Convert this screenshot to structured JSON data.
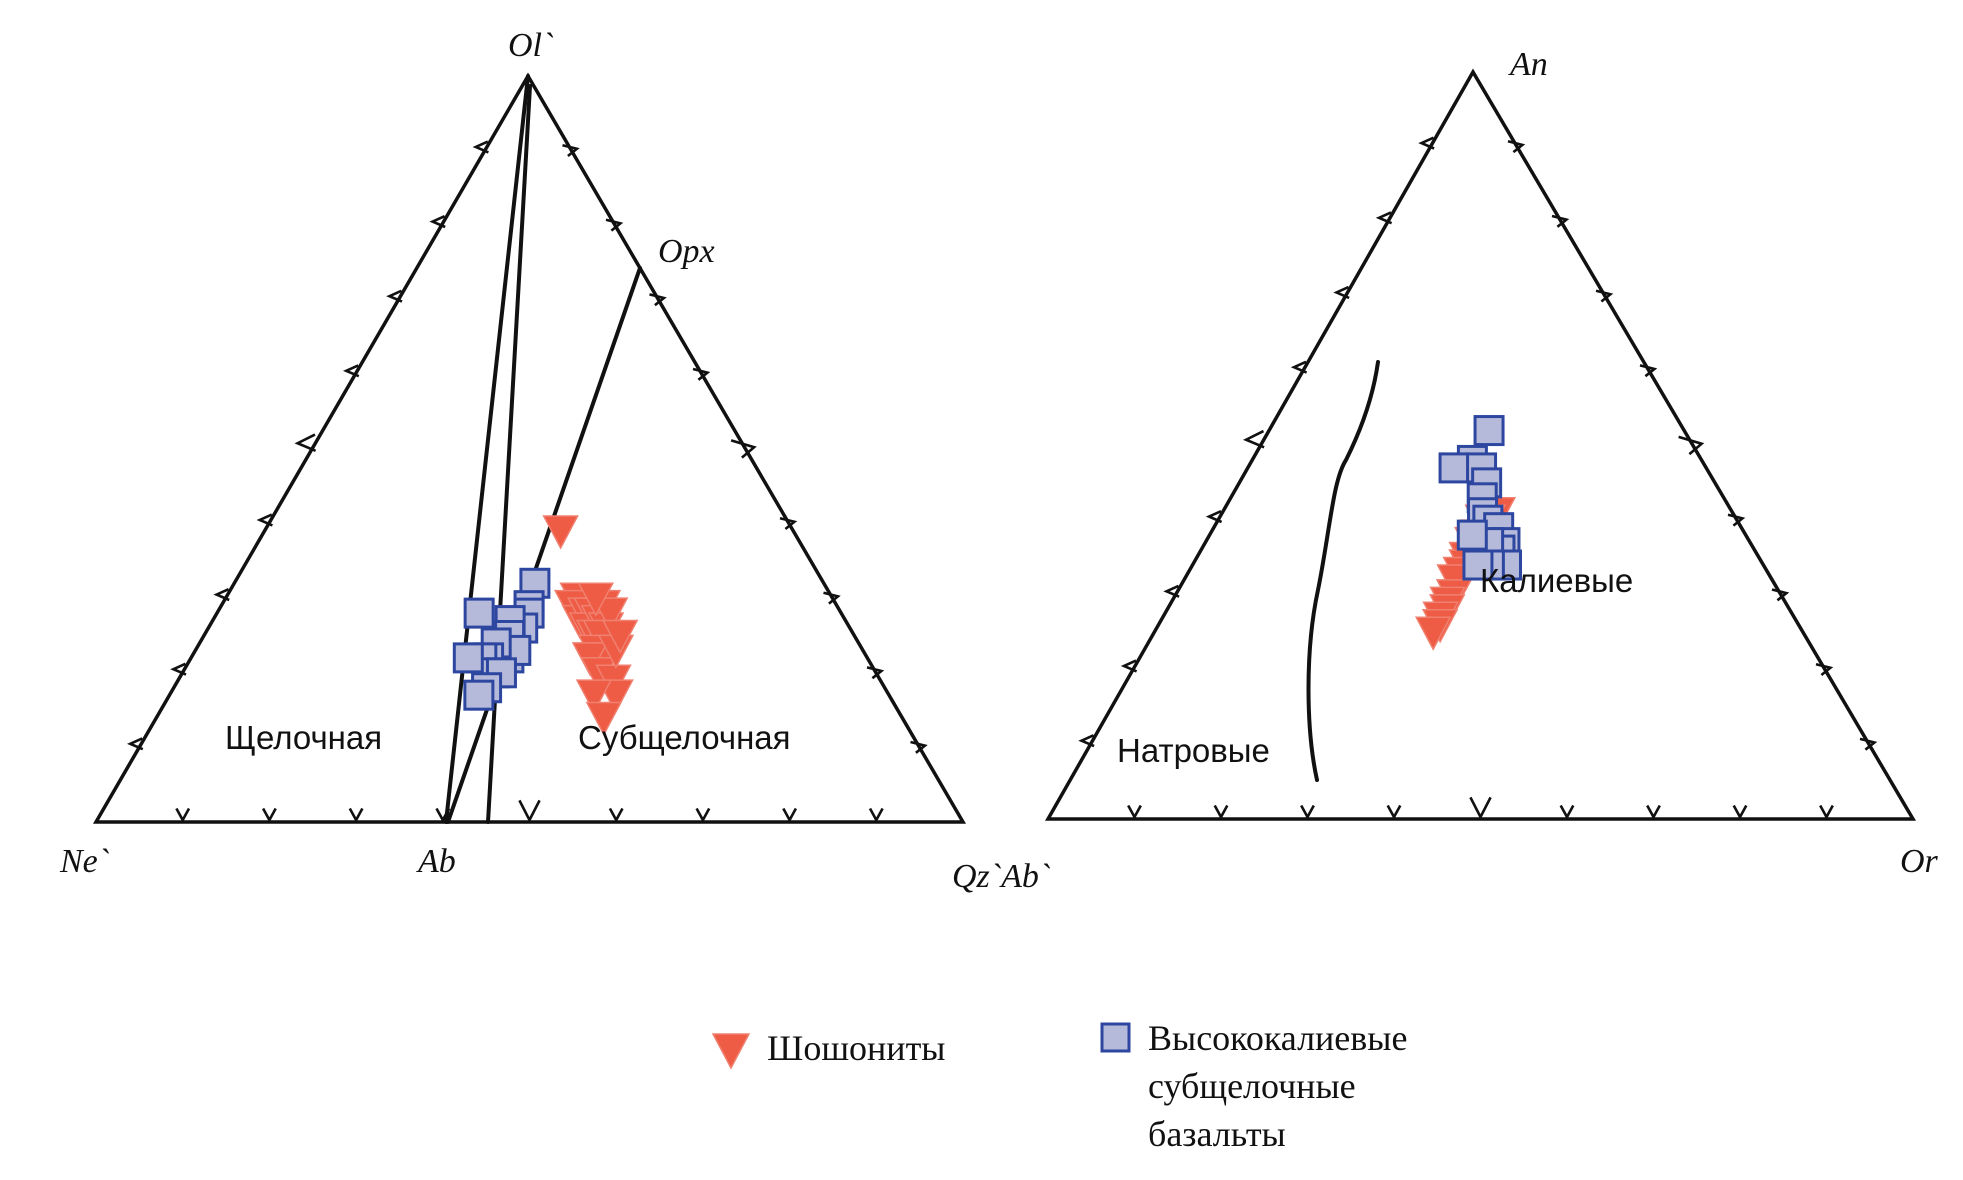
{
  "chart_data": [
    {
      "type": "scatter",
      "subtype": "ternary",
      "vertices": {
        "top": "Ol`",
        "left": "Ne`",
        "right": "Qz`Ab`"
      },
      "edge_labels": {
        "bottom": "Ab",
        "right": "Opx"
      },
      "regions": {
        "left": "Щелочная",
        "right": "Субщелочная"
      },
      "series": [
        {
          "name": "Шошониты",
          "points": [
            [
              0.56,
              0.39
            ],
            [
              0.58,
              0.3
            ],
            [
              0.57,
              0.29
            ],
            [
              0.58,
              0.27
            ],
            [
              0.59,
              0.28
            ],
            [
              0.6,
              0.28
            ],
            [
              0.59,
              0.26
            ],
            [
              0.6,
              0.25
            ],
            [
              0.61,
              0.27
            ],
            [
              0.62,
              0.29
            ],
            [
              0.62,
              0.26
            ],
            [
              0.61,
              0.25
            ],
            [
              0.6,
              0.23
            ],
            [
              0.61,
              0.22
            ],
            [
              0.59,
              0.22
            ],
            [
              0.6,
              0.2
            ],
            [
              0.63,
              0.28
            ],
            [
              0.61,
              0.3
            ],
            [
              0.62,
              0.19
            ],
            [
              0.62,
              0.17
            ],
            [
              0.59,
              0.17
            ],
            [
              0.6,
              0.14
            ],
            [
              0.63,
              0.23
            ],
            [
              0.64,
              0.25
            ]
          ]
        },
        {
          "name": "Высококалиевые субщелочные базальты",
          "points": [
            [
              0.51,
              0.32
            ],
            [
              0.5,
              0.29
            ],
            [
              0.5,
              0.28
            ],
            [
              0.49,
              0.26
            ],
            [
              0.47,
              0.27
            ],
            [
              0.47,
              0.25
            ],
            [
              0.47,
              0.22
            ],
            [
              0.48,
              0.23
            ],
            [
              0.45,
              0.24
            ],
            [
              0.44,
              0.22
            ],
            [
              0.42,
              0.28
            ],
            [
              0.43,
              0.22
            ],
            [
              0.45,
              0.2
            ],
            [
              0.46,
              0.2
            ],
            [
              0.44,
              0.18
            ],
            [
              0.43,
              0.17
            ],
            [
              0.41,
              0.22
            ]
          ]
        }
      ]
    },
    {
      "type": "scatter",
      "subtype": "ternary",
      "vertices": {
        "top": "An",
        "left": "",
        "right": "Or"
      },
      "regions": {
        "left": "Натровые",
        "right": "Калиевые"
      },
      "series": [
        {
          "name": "Шошониты",
          "points": [
            [
              0.54,
              0.41
            ],
            [
              0.52,
              0.4
            ],
            [
              0.51,
              0.4
            ],
            [
              0.5,
              0.38
            ],
            [
              0.49,
              0.37
            ],
            [
              0.5,
              0.36
            ],
            [
              0.48,
              0.35
            ],
            [
              0.48,
              0.34
            ],
            [
              0.47,
              0.33
            ],
            [
              0.46,
              0.32
            ],
            [
              0.46,
              0.3
            ],
            [
              0.45,
              0.29
            ],
            [
              0.45,
              0.28
            ],
            [
              0.44,
              0.27
            ],
            [
              0.44,
              0.26
            ],
            [
              0.43,
              0.25
            ]
          ]
        },
        {
          "name": "Высококалиевые субщелочные базальты",
          "points": [
            [
              0.53,
              0.52
            ],
            [
              0.49,
              0.48
            ],
            [
              0.45,
              0.47
            ],
            [
              0.51,
              0.47
            ],
            [
              0.52,
              0.45
            ],
            [
              0.51,
              0.43
            ],
            [
              0.51,
              0.41
            ],
            [
              0.52,
              0.4
            ],
            [
              0.54,
              0.39
            ],
            [
              0.55,
              0.37
            ],
            [
              0.54,
              0.36
            ],
            [
              0.52,
              0.37
            ],
            [
              0.49,
              0.38
            ],
            [
              0.55,
              0.34
            ],
            [
              0.52,
              0.34
            ],
            [
              0.5,
              0.34
            ]
          ]
        }
      ]
    }
  ],
  "legend": {
    "item1": "Шошониты",
    "item2_line1": "Высококалиевые",
    "item2_line2": "субщелочные",
    "item2_line3": "базальты"
  },
  "colors": {
    "shoshonite": "#ee5c45",
    "basalt_fill": "#b5b9da",
    "basalt_edge": "#2d47a0"
  }
}
